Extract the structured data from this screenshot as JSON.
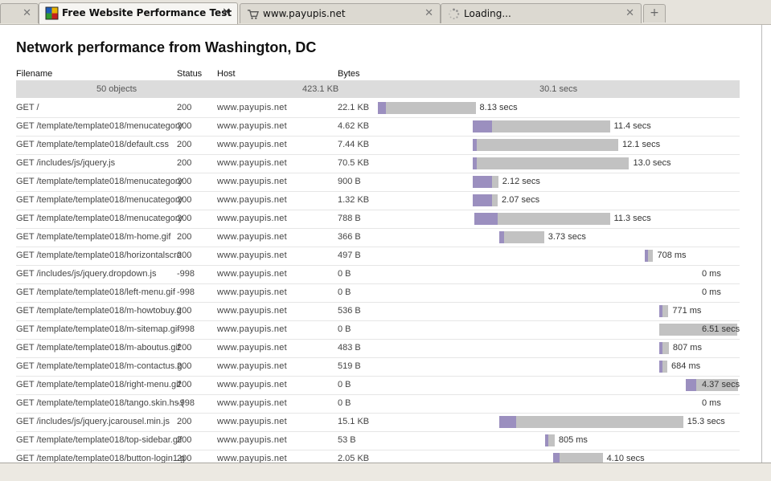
{
  "browser": {
    "tabs": [
      {
        "label": "",
        "icon": "blank-page-icon",
        "active": false
      },
      {
        "label": "Free Website Performance Test",
        "icon": "pingdom-logo-icon",
        "active": true
      },
      {
        "label": "www.payupis.net",
        "icon": "cart-icon",
        "active": false
      },
      {
        "label": "Loading...",
        "icon": "loading-spinner-icon",
        "active": false
      }
    ],
    "close_glyph": "✕",
    "new_tab_glyph": "+"
  },
  "page": {
    "title": "Network performance from Washington, DC",
    "columns": {
      "filename": "Filename",
      "status": "Status",
      "host": "Host",
      "bytes": "Bytes"
    },
    "summary": {
      "objects": "50 objects",
      "size": "423.1 KB",
      "time": "30.1 secs"
    },
    "colors": {
      "bar_total": "#c2c2c2",
      "bar_connect": "#9b8fbf",
      "summary_bg": "#dcdcdc"
    },
    "rows": [
      {
        "file": "GET /",
        "status": "200",
        "host": "www.payupis.net",
        "bytes": "22.1 KB",
        "start": 0.0,
        "connect": 0.7,
        "total": 8.13,
        "time": "8.13 secs"
      },
      {
        "file": "GET /template/template018/menucategory",
        "status": "200",
        "host": "www.payupis.net",
        "bytes": "4.62 KB",
        "start": 7.9,
        "connect": 1.6,
        "total": 11.4,
        "time": "11.4 secs"
      },
      {
        "file": "GET /template/template018/default.css",
        "status": "200",
        "host": "www.payupis.net",
        "bytes": "7.44 KB",
        "start": 7.9,
        "connect": 0.3,
        "total": 12.1,
        "time": "12.1 secs"
      },
      {
        "file": "GET /includes/js/jquery.js",
        "status": "200",
        "host": "www.payupis.net",
        "bytes": "70.5 KB",
        "start": 7.9,
        "connect": 0.3,
        "total": 13.0,
        "time": "13.0 secs"
      },
      {
        "file": "GET /template/template018/menucategory",
        "status": "200",
        "host": "www.payupis.net",
        "bytes": "900 B",
        "start": 7.9,
        "connect": 1.6,
        "total": 2.12,
        "time": "2.12 secs"
      },
      {
        "file": "GET /template/template018/menucategory",
        "status": "200",
        "host": "www.payupis.net",
        "bytes": "1.32 KB",
        "start": 7.9,
        "connect": 1.6,
        "total": 2.07,
        "time": "2.07 secs"
      },
      {
        "file": "GET /template/template018/menucategory",
        "status": "200",
        "host": "www.payupis.net",
        "bytes": "788 B",
        "start": 8.0,
        "connect": 2.0,
        "total": 11.3,
        "time": "11.3 secs"
      },
      {
        "file": "GET /template/template018/m-home.gif",
        "status": "200",
        "host": "www.payupis.net",
        "bytes": "366 B",
        "start": 10.1,
        "connect": 0.4,
        "total": 3.73,
        "time": "3.73 secs"
      },
      {
        "file": "GET /template/template018/horizontalscro",
        "status": "200",
        "host": "www.payupis.net",
        "bytes": "497 B",
        "start": 22.2,
        "connect": 0.3,
        "total": 0.708,
        "time": "708 ms"
      },
      {
        "file": "GET /includes/js/jquery.dropdown.js",
        "status": "-998",
        "host": "www.payupis.net",
        "bytes": "0 B",
        "start": 30.1,
        "connect": 0,
        "total": 0,
        "time": "0 ms"
      },
      {
        "file": "GET /template/template018/left-menu.gif",
        "status": "-998",
        "host": "www.payupis.net",
        "bytes": "0 B",
        "start": 30.1,
        "connect": 0,
        "total": 0,
        "time": "0 ms"
      },
      {
        "file": "GET /template/template018/m-howtobuy.g",
        "status": "200",
        "host": "www.payupis.net",
        "bytes": "536 B",
        "start": 23.4,
        "connect": 0.3,
        "total": 0.771,
        "time": "771 ms"
      },
      {
        "file": "GET /template/template018/m-sitemap.gif",
        "status": "-998",
        "host": "www.payupis.net",
        "bytes": "0 B",
        "start": 23.4,
        "connect": 0,
        "total": 6.51,
        "time": "6.51 secs"
      },
      {
        "file": "GET /template/template018/m-aboutus.gif",
        "status": "200",
        "host": "www.payupis.net",
        "bytes": "483 B",
        "start": 23.4,
        "connect": 0.3,
        "total": 0.807,
        "time": "807 ms"
      },
      {
        "file": "GET /template/template018/m-contactus.g",
        "status": "200",
        "host": "www.payupis.net",
        "bytes": "519 B",
        "start": 23.4,
        "connect": 0.3,
        "total": 0.684,
        "time": "684 ms"
      },
      {
        "file": "GET /template/template018/right-menu.gif",
        "status": "200",
        "host": "www.payupis.net",
        "bytes": "0 B",
        "start": 25.6,
        "connect": 0.9,
        "total": 4.37,
        "time": "4.37 secs"
      },
      {
        "file": "GET /template/template018/tango.skin.hs.(",
        "status": "-998",
        "host": "www.payupis.net",
        "bytes": "0 B",
        "start": 30.1,
        "connect": 0,
        "total": 0,
        "time": "0 ms"
      },
      {
        "file": "GET /includes/js/jquery.jcarousel.min.js",
        "status": "200",
        "host": "www.payupis.net",
        "bytes": "15.1 KB",
        "start": 10.1,
        "connect": 1.4,
        "total": 15.3,
        "time": "15.3 secs"
      },
      {
        "file": "GET /template/template018/top-sidebar.gif",
        "status": "200",
        "host": "www.payupis.net",
        "bytes": "53 B",
        "start": 13.9,
        "connect": 0.3,
        "total": 0.805,
        "time": "805 ms"
      },
      {
        "file": "GET /template/template018/button-login1.g",
        "status": "200",
        "host": "www.payupis.net",
        "bytes": "2.05 KB",
        "start": 14.6,
        "connect": 0.5,
        "total": 4.1,
        "time": "4.10 secs"
      }
    ]
  }
}
